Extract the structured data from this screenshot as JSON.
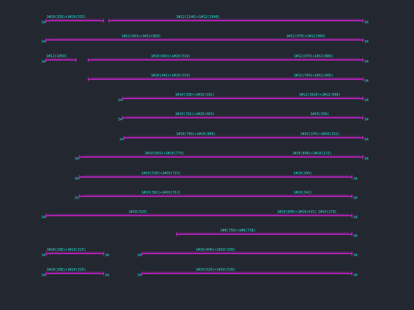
{
  "colors": {
    "background": "#232830",
    "line": "#e020e0",
    "text": "#30e0e0"
  },
  "rows": [
    {
      "segments": [
        {
          "x1": 67,
          "x2": 150,
          "label": "1#10(339)+1#10(525)",
          "tag_left": "34",
          "tag_right": ""
        },
        {
          "x1": 158,
          "x2": 526,
          "label": "1#12(1140)+1#12(1048)",
          "tag_left": "",
          "tag_right": "34"
        }
      ]
    },
    {
      "segments": [
        {
          "x1": 67,
          "x2": 526,
          "label": "1#12(693)+1#12(893)",
          "label2": "1#12(970)+1#12(989)",
          "tag_left": "34",
          "tag_right": "34"
        }
      ]
    },
    {
      "segments": [
        {
          "x1": 67,
          "x2": 110,
          "label": "1#12(1050)",
          "tag_left": "34",
          "tag_right": ""
        },
        {
          "x1": 128,
          "x2": 526,
          "label": "1#10(493)+1#10(319)",
          "label2": "1#12(970)+1#12(889)",
          "tag_left": "",
          "tag_right": "34"
        }
      ]
    },
    {
      "segments": [
        {
          "x1": 128,
          "x2": 526,
          "label": "1#10(442)+1#10(319)",
          "label2": "1#12(740)+1#12(405)",
          "tag_left": "",
          "tag_right": "34"
        }
      ]
    },
    {
      "segments": [
        {
          "x1": 178,
          "x2": 526,
          "label": "1#10(338)+1#10(181)",
          "label2": "1#12(1020)+1#12(998)",
          "tag_left": "34",
          "tag_right": "34"
        }
      ]
    },
    {
      "segments": [
        {
          "x1": 178,
          "x2": 526,
          "label": "1#10(781)+1#10(403)",
          "label2": "1#10(338)",
          "tag_left": "34",
          "tag_right": "34"
        }
      ]
    },
    {
      "segments": [
        {
          "x1": 180,
          "x2": 526,
          "label": "1#10(760)+1#10(889)",
          "label2": "1#10(370)+1#10(322)",
          "tag_left": "34",
          "tag_right": "34"
        }
      ]
    },
    {
      "segments": [
        {
          "x1": 115,
          "x2": 526,
          "label": "1#10(693)+1#10(770)",
          "label2": "1#10(898)+1#10(215)",
          "tag_left": "34",
          "tag_right": "34"
        }
      ]
    },
    {
      "segments": [
        {
          "x1": 115,
          "x2": 510,
          "label": "1#10(530)+1#10(715)",
          "label2": "1#10(345)",
          "tag_left": "34",
          "tag_right": "34"
        }
      ]
    },
    {
      "segments": [
        {
          "x1": 115,
          "x2": 510,
          "label": "1#10(382)+1#10(312)",
          "label2": "1#10(342)",
          "tag_left": "25",
          "tag_right": "34"
        }
      ]
    },
    {
      "segments": [
        {
          "x1": 67,
          "x2": 510,
          "label": "1#10(520)",
          "label2": "1#10(690)+1#10(415)",
          "label3": "1#10(278)",
          "tag_left": "34",
          "tag_right": "34"
        }
      ]
    },
    {
      "segments": [
        {
          "x1": 256,
          "x2": 510,
          "label": "1#8(750)+1#8(738)",
          "tag_left": "",
          "tag_right": "34"
        }
      ]
    },
    {
      "segments": [
        {
          "x1": 67,
          "x2": 150,
          "label": "1#10(208)+1#10(325)",
          "tag_left": "34",
          "tag_right": "34"
        },
        {
          "x1": 206,
          "x2": 510,
          "label": "1#10(490)+1#10(330)",
          "tag_left": "34",
          "tag_right": "34"
        }
      ]
    },
    {
      "segments": [
        {
          "x1": 67,
          "x2": 150,
          "label": "1#10(208)+1#10(325)",
          "tag_left": "34",
          "tag_right": "34"
        },
        {
          "x1": 206,
          "x2": 510,
          "label": "1#10(520)+1#10(520)",
          "tag_left": "34",
          "tag_right": "34"
        }
      ]
    }
  ]
}
